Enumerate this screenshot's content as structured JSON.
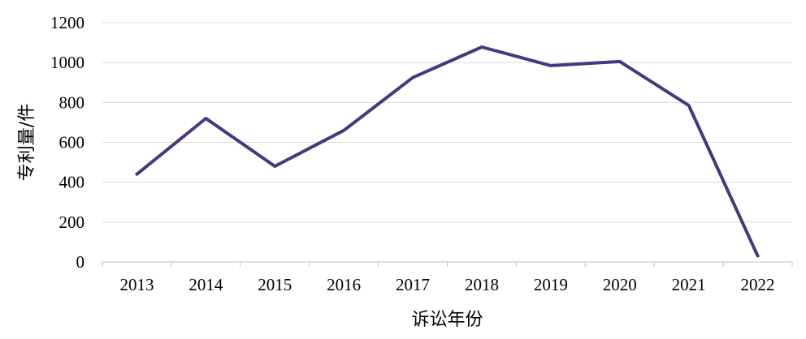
{
  "chart_data": {
    "type": "line",
    "title": "",
    "xlabel": "诉讼年份",
    "ylabel": "专利量/件",
    "categories": [
      "2013",
      "2014",
      "2015",
      "2016",
      "2017",
      "2018",
      "2019",
      "2020",
      "2021",
      "2022"
    ],
    "series": [
      {
        "values": [
          440,
          720,
          480,
          660,
          925,
          1078,
          985,
          1005,
          785,
          30
        ]
      }
    ],
    "ylim": [
      0,
      1200
    ],
    "yticks": [
      0,
      200,
      400,
      600,
      800,
      1000,
      1200
    ],
    "grid": true,
    "legend": "none",
    "line_color": "#4b3580"
  }
}
